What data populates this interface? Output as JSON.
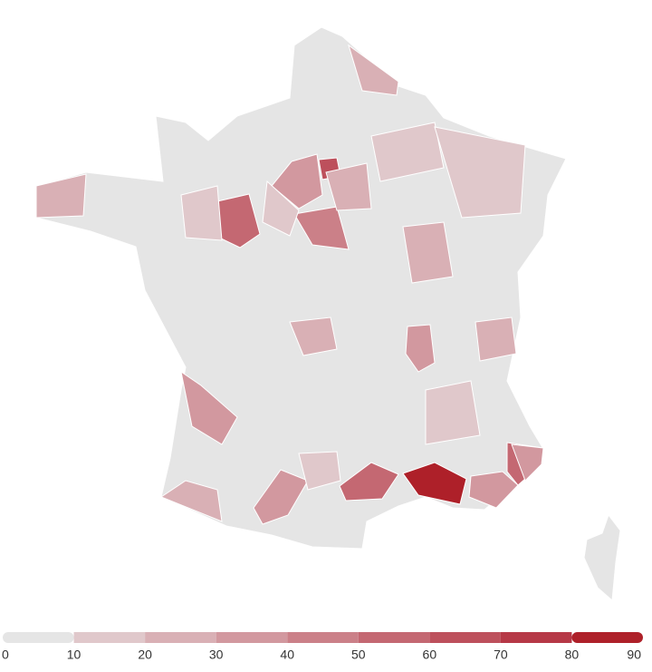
{
  "map": {
    "legend": {
      "ticks": [
        0,
        10,
        20,
        30,
        40,
        50,
        60,
        70,
        80,
        90
      ],
      "colors": [
        "#e5e5e5",
        "#e0c8cb",
        "#d9b0b5",
        "#d2989f",
        "#cb8088",
        "#c46872",
        "#bd505c",
        "#b63846",
        "#ae2029"
      ]
    },
    "no_data_color": "#e5e5e5",
    "regions": {
      "values": [
        55,
        85,
        55,
        50,
        35,
        40,
        35,
        30,
        65,
        30,
        30,
        20,
        20,
        20,
        25,
        15,
        15,
        15,
        15,
        25,
        20,
        15,
        35,
        15,
        20
      ]
    }
  }
}
